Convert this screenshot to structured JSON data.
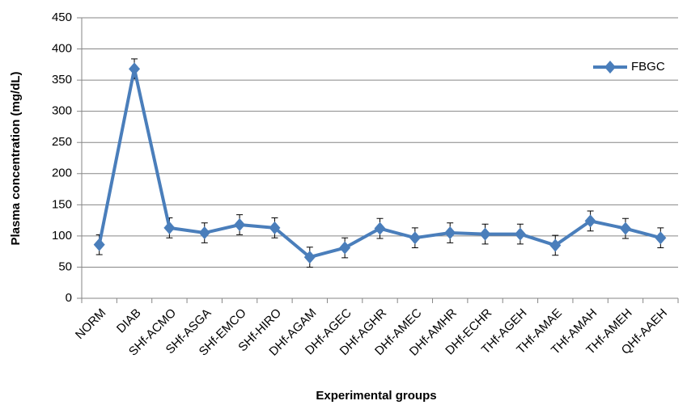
{
  "chart_data": {
    "type": "line",
    "x_label": "Experimental groups",
    "y_label": "Plasma concentration (mg/dL)",
    "categories": [
      "NORM",
      "DIAB",
      "SHf-ACMO",
      "SHf-ASGA",
      "SHf-EMCO",
      "SHf-HIRO",
      "DHf-AGAM",
      "DHf-AGEC",
      "DHf-AGHR",
      "DHf-AMEC",
      "DHf-AMHR",
      "DHf-ECHR",
      "THf-AGEH",
      "THf-AMAE",
      "THf-AMAH",
      "THf-AMEH",
      "QHf-AAEH"
    ],
    "series": [
      {
        "name": "FBGC",
        "color": "#4a7ebb",
        "values": [
          86,
          368,
          113,
          105,
          118,
          113,
          66,
          81,
          112,
          97,
          105,
          103,
          103,
          85,
          124,
          112,
          97
        ],
        "errors": [
          16,
          16,
          16,
          16,
          16,
          16,
          16,
          16,
          16,
          16,
          16,
          16,
          16,
          16,
          16,
          16,
          16
        ]
      }
    ],
    "ylim": [
      0,
      450
    ],
    "yticks": [
      0,
      50,
      100,
      150,
      200,
      250,
      300,
      350,
      400,
      450
    ],
    "grid": true,
    "legend": "upper right",
    "x_label_color": "#e02020"
  }
}
